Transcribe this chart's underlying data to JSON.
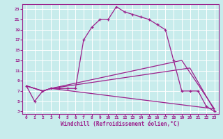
{
  "xlabel": "Windchill (Refroidissement éolien,°C)",
  "bg_color": "#c8ecec",
  "line_color": "#9b1f8c",
  "xmin": 0,
  "xmax": 23,
  "ymin": 3,
  "ymax": 23,
  "yticks": [
    3,
    5,
    7,
    9,
    11,
    13,
    15,
    17,
    19,
    21,
    23
  ],
  "xticks": [
    0,
    1,
    2,
    3,
    4,
    5,
    6,
    7,
    8,
    9,
    10,
    11,
    12,
    13,
    14,
    15,
    16,
    17,
    18,
    19,
    20,
    21,
    22,
    23
  ],
  "main_x": [
    0,
    1,
    2,
    3,
    4,
    5,
    6,
    7,
    8,
    9,
    10,
    11,
    12,
    13,
    14,
    15,
    16,
    17,
    18,
    19,
    20,
    21,
    22,
    23
  ],
  "main_y": [
    8,
    5,
    7,
    7.5,
    7.5,
    7.5,
    7.5,
    17,
    19.5,
    21,
    21,
    23.5,
    22.5,
    22,
    21.5,
    21,
    20,
    19,
    13,
    7,
    7,
    7,
    4,
    3
  ],
  "line1_x": [
    0,
    2,
    3,
    23
  ],
  "line1_y": [
    8,
    7,
    7.5,
    3.5
  ],
  "line2_x": [
    0,
    2,
    3,
    19,
    23
  ],
  "line2_y": [
    8,
    7,
    7.5,
    13,
    3.5
  ],
  "line3_x": [
    0,
    2,
    3,
    20,
    23
  ],
  "line3_y": [
    8,
    7,
    7.5,
    11.5,
    3.2
  ]
}
